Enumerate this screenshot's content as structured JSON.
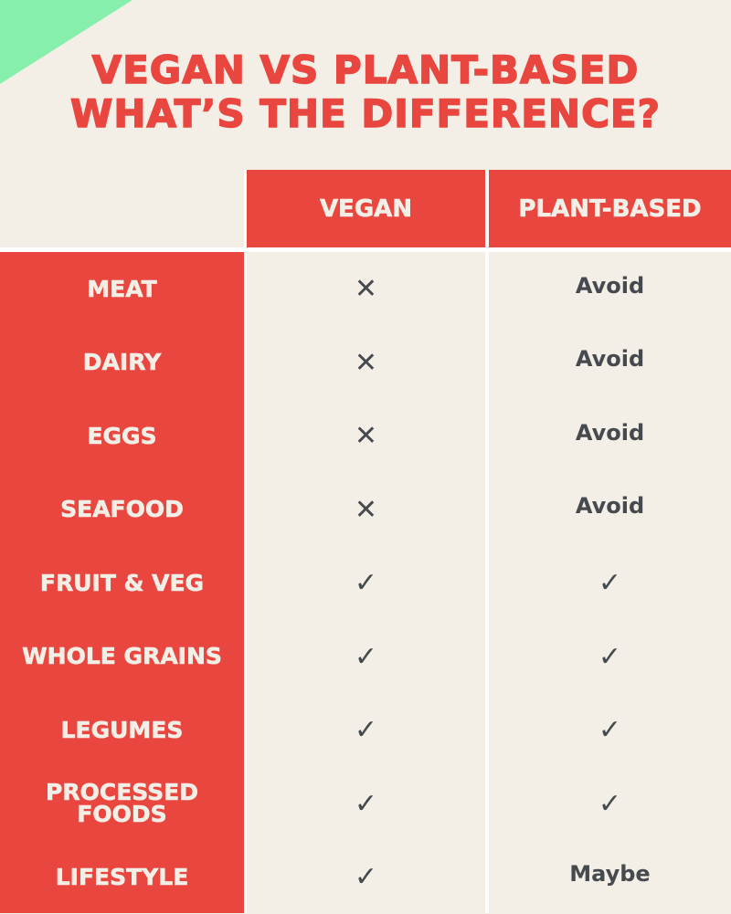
{
  "title": {
    "line1": "VEGAN VS PLANT-BASED",
    "line2": "WHAT’S THE DIFFERENCE?"
  },
  "table": {
    "header": [
      "VEGAN",
      "PLANT-BASED"
    ],
    "rows": [
      [
        "MEAT",
        "✕",
        "Avoid"
      ],
      [
        "DAIRY",
        "✕",
        "Avoid"
      ],
      [
        "EGGS",
        "✕",
        "Avoid"
      ],
      [
        "SEAFOOD",
        "✕",
        "Avoid"
      ],
      [
        "FRUIT & VEG",
        "✓",
        "✓"
      ],
      [
        "WHOLE GRAINS",
        "✓",
        "✓"
      ],
      [
        "LEGUMES",
        "✓",
        "✓"
      ],
      [
        "PROCESSED FOODS",
        "✓",
        "✓"
      ],
      [
        "LIFESTYLE",
        "✓",
        "Maybe"
      ]
    ]
  }
}
